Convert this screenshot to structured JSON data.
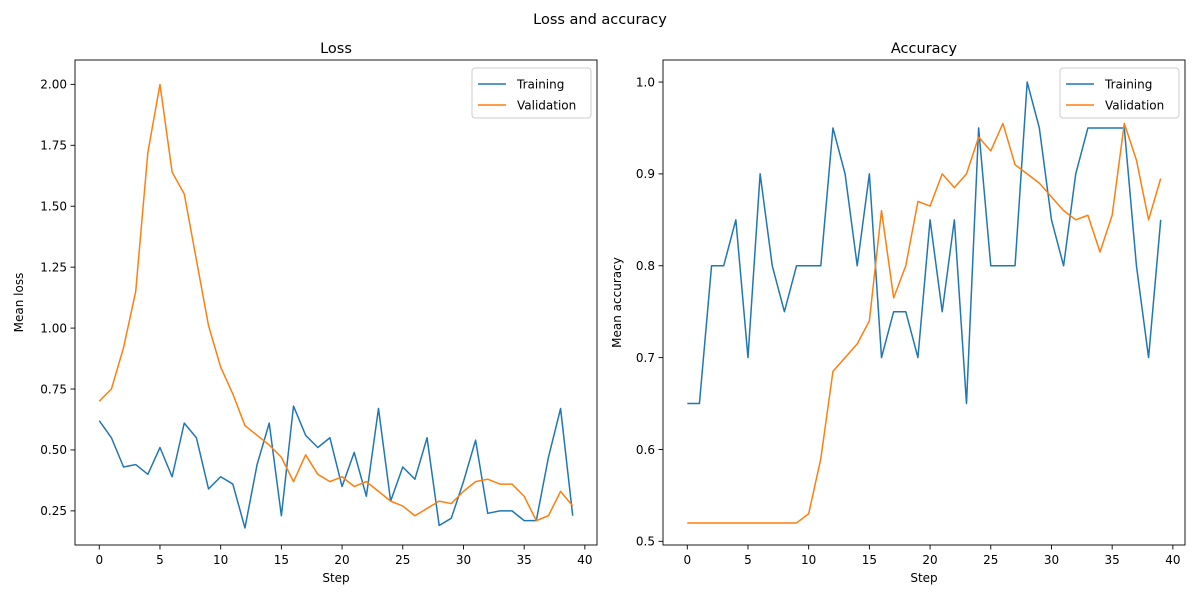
{
  "figure": {
    "suptitle": "Loss and accuracy"
  },
  "chart_data": [
    {
      "type": "line",
      "title": "Loss",
      "xlabel": "Step",
      "ylabel": "Mean loss",
      "xlim": [
        -2,
        41
      ],
      "ylim": [
        0.11,
        2.1
      ],
      "xticks": [
        0,
        5,
        10,
        15,
        20,
        25,
        30,
        35,
        40
      ],
      "yticks": [
        0.25,
        0.5,
        0.75,
        1.0,
        1.25,
        1.5,
        1.75,
        2.0
      ],
      "ytick_labels": [
        "0.25",
        "0.50",
        "0.75",
        "1.00",
        "1.25",
        "1.50",
        "1.75",
        "2.00"
      ],
      "legend_position": "top-right",
      "grid": false,
      "x": [
        0,
        1,
        2,
        3,
        4,
        5,
        6,
        7,
        8,
        9,
        10,
        11,
        12,
        13,
        14,
        15,
        16,
        17,
        18,
        19,
        20,
        21,
        22,
        23,
        24,
        25,
        26,
        27,
        28,
        29,
        30,
        31,
        32,
        33,
        34,
        35,
        36,
        37,
        38,
        39
      ],
      "series": [
        {
          "name": "Training",
          "color": "#1f77b4",
          "values": [
            0.62,
            0.55,
            0.43,
            0.44,
            0.4,
            0.51,
            0.39,
            0.61,
            0.55,
            0.34,
            0.39,
            0.36,
            0.18,
            0.44,
            0.61,
            0.23,
            0.68,
            0.56,
            0.51,
            0.55,
            0.35,
            0.49,
            0.31,
            0.67,
            0.29,
            0.43,
            0.38,
            0.55,
            0.19,
            0.22,
            0.37,
            0.54,
            0.24,
            0.25,
            0.25,
            0.21,
            0.21,
            0.47,
            0.67,
            0.23
          ]
        },
        {
          "name": "Validation",
          "color": "#ff7f0e",
          "values": [
            0.7,
            0.75,
            0.92,
            1.15,
            1.72,
            2.0,
            1.64,
            1.55,
            1.28,
            1.01,
            0.84,
            0.73,
            0.6,
            0.56,
            0.52,
            0.47,
            0.37,
            0.48,
            0.4,
            0.37,
            0.39,
            0.35,
            0.37,
            0.33,
            0.29,
            0.27,
            0.23,
            0.26,
            0.29,
            0.28,
            0.33,
            0.37,
            0.38,
            0.36,
            0.36,
            0.31,
            0.21,
            0.23,
            0.33,
            0.27
          ]
        }
      ]
    },
    {
      "type": "line",
      "title": "Accuracy",
      "xlabel": "Step",
      "ylabel": "Mean accuracy",
      "xlim": [
        -2,
        41
      ],
      "ylim": [
        0.496,
        1.024
      ],
      "xticks": [
        0,
        5,
        10,
        15,
        20,
        25,
        30,
        35,
        40
      ],
      "yticks": [
        0.5,
        0.6,
        0.7,
        0.8,
        0.9,
        1.0
      ],
      "ytick_labels": [
        "0.5",
        "0.6",
        "0.7",
        "0.8",
        "0.9",
        "1.0"
      ],
      "legend_position": "top-right",
      "grid": false,
      "x": [
        0,
        1,
        2,
        3,
        4,
        5,
        6,
        7,
        8,
        9,
        10,
        11,
        12,
        13,
        14,
        15,
        16,
        17,
        18,
        19,
        20,
        21,
        22,
        23,
        24,
        25,
        26,
        27,
        28,
        29,
        30,
        31,
        32,
        33,
        34,
        35,
        36,
        37,
        38,
        39
      ],
      "series": [
        {
          "name": "Training",
          "color": "#1f77b4",
          "values": [
            0.65,
            0.65,
            0.8,
            0.8,
            0.85,
            0.7,
            0.9,
            0.8,
            0.75,
            0.8,
            0.8,
            0.8,
            0.95,
            0.9,
            0.8,
            0.9,
            0.7,
            0.75,
            0.75,
            0.7,
            0.85,
            0.75,
            0.85,
            0.65,
            0.95,
            0.8,
            0.8,
            0.8,
            1.0,
            0.95,
            0.85,
            0.8,
            0.9,
            0.95,
            0.95,
            0.95,
            0.95,
            0.8,
            0.7,
            0.85
          ]
        },
        {
          "name": "Validation",
          "color": "#ff7f0e",
          "values": [
            0.52,
            0.52,
            0.52,
            0.52,
            0.52,
            0.52,
            0.52,
            0.52,
            0.52,
            0.52,
            0.53,
            0.59,
            0.685,
            0.7,
            0.715,
            0.74,
            0.86,
            0.765,
            0.8,
            0.87,
            0.865,
            0.9,
            0.885,
            0.9,
            0.94,
            0.925,
            0.955,
            0.91,
            0.9,
            0.89,
            0.875,
            0.86,
            0.85,
            0.855,
            0.815,
            0.855,
            0.955,
            0.915,
            0.85,
            0.895
          ]
        }
      ]
    }
  ]
}
